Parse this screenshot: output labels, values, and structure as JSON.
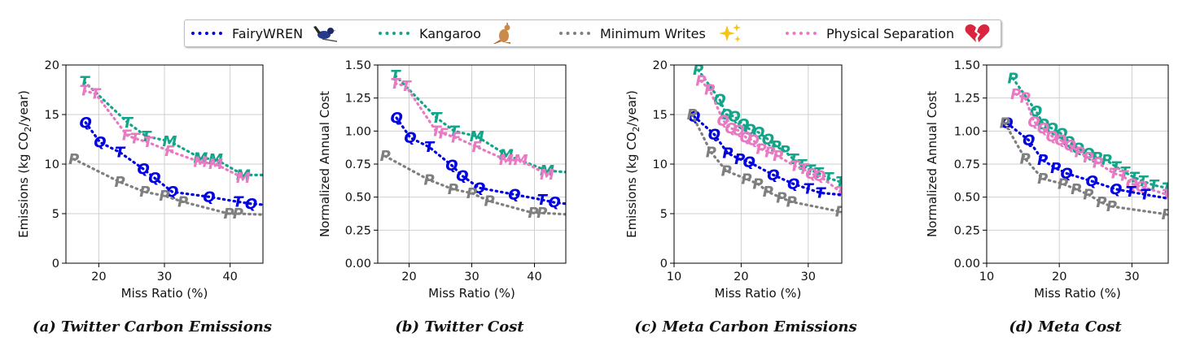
{
  "legend": {
    "items": [
      {
        "label": "FairyWREN",
        "color": "#0000e0",
        "icon": "wren-bird-icon"
      },
      {
        "label": "Kangaroo",
        "color": "#12a58a",
        "icon": "kangaroo-icon"
      },
      {
        "label": "Minimum Writes",
        "color": "#7f7f7f",
        "icon": "sparkles-icon"
      },
      {
        "label": "Physical Separation",
        "color": "#e77ac3",
        "icon": "broken-heart-icon"
      }
    ]
  },
  "chart_data": [
    {
      "type": "line",
      "caption": "(a) Twitter Carbon Emissions",
      "xlabel": "Miss Ratio (%)",
      "ylabel": "Emissions (kg CO2/year)",
      "xlim": [
        15,
        45
      ],
      "ylim": [
        0,
        20
      ],
      "xticks": [
        "20",
        "30",
        "40"
      ],
      "xtick_values": [
        20,
        30,
        40
      ],
      "yticks": [
        "0",
        "5",
        "10",
        "15",
        "20"
      ],
      "ytick_values": [
        0,
        5,
        10,
        15,
        20
      ],
      "grid": true,
      "series": [
        {
          "name": "Kangaroo",
          "color": "#12a58a",
          "points": [
            [
              17.8,
              18.3,
              "T"
            ],
            [
              24.4,
              14.2,
              "T"
            ],
            [
              27.2,
              12.8,
              "T"
            ],
            [
              30.8,
              12.3,
              "M"
            ],
            [
              35.5,
              10.6,
              "M"
            ],
            [
              37.8,
              10.5,
              "M"
            ],
            [
              42.0,
              8.9,
              "M"
            ],
            [
              45,
              8.9,
              ""
            ]
          ]
        },
        {
          "name": "Physical Separation",
          "color": "#e77ac3",
          "points": [
            [
              17.8,
              17.4,
              "T"
            ],
            [
              19.5,
              17.1,
              "T"
            ],
            [
              24.3,
              12.9,
              "F"
            ],
            [
              25.5,
              12.6,
              "T"
            ],
            [
              27.5,
              12.2,
              "T"
            ],
            [
              30.8,
              11.3,
              "F"
            ],
            [
              35.5,
              10.2,
              "M"
            ],
            [
              37.8,
              10.0,
              "M"
            ],
            [
              42.0,
              8.6,
              "M"
            ]
          ]
        },
        {
          "name": "FairyWREN",
          "color": "#0000e0",
          "points": [
            [
              18.0,
              14.2,
              "Q"
            ],
            [
              20.2,
              12.2,
              "Q"
            ],
            [
              23.2,
              11.2,
              "T"
            ],
            [
              26.8,
              9.5,
              "Q"
            ],
            [
              28.5,
              8.6,
              "Q"
            ],
            [
              31.2,
              7.2,
              "Q"
            ],
            [
              36.8,
              6.7,
              "Q"
            ],
            [
              41.2,
              6.2,
              "T"
            ],
            [
              43.2,
              6.0,
              "Q"
            ],
            [
              45,
              5.9,
              ""
            ]
          ]
        },
        {
          "name": "Minimum Writes",
          "color": "#7f7f7f",
          "points": [
            [
              16.2,
              10.5,
              "P"
            ],
            [
              23.2,
              8.2,
              "P"
            ],
            [
              27.0,
              7.2,
              "P"
            ],
            [
              30.0,
              6.8,
              "P"
            ],
            [
              32.8,
              6.2,
              "P"
            ],
            [
              39.8,
              5.0,
              "P"
            ],
            [
              41.2,
              5.0,
              "P"
            ],
            [
              45,
              4.9,
              ""
            ]
          ]
        }
      ]
    },
    {
      "type": "line",
      "caption": "(b) Twitter Cost",
      "xlabel": "Miss Ratio (%)",
      "ylabel": "Normalized Annual Cost",
      "xlim": [
        15,
        45
      ],
      "ylim": [
        0,
        1.5
      ],
      "xticks": [
        "20",
        "30",
        "40"
      ],
      "xtick_values": [
        20,
        30,
        40
      ],
      "yticks": [
        "0.00",
        "0.25",
        "0.50",
        "0.75",
        "1.00",
        "1.25",
        "1.50"
      ],
      "ytick_values": [
        0,
        0.25,
        0.5,
        0.75,
        1.0,
        1.25,
        1.5
      ],
      "grid": true,
      "series": [
        {
          "name": "Kangaroo",
          "color": "#12a58a",
          "points": [
            [
              17.8,
              1.42,
              "T"
            ],
            [
              24.4,
              1.1,
              "T"
            ],
            [
              27.2,
              1.0,
              "T"
            ],
            [
              30.8,
              0.96,
              "M"
            ],
            [
              35.5,
              0.82,
              "M"
            ],
            [
              42.0,
              0.7,
              "M"
            ],
            [
              45,
              0.69,
              ""
            ]
          ]
        },
        {
          "name": "Physical Separation",
          "color": "#e77ac3",
          "points": [
            [
              17.8,
              1.36,
              "T"
            ],
            [
              19.5,
              1.34,
              "T"
            ],
            [
              24.3,
              1.0,
              "T"
            ],
            [
              25.5,
              0.98,
              "F"
            ],
            [
              27.5,
              0.95,
              "F"
            ],
            [
              30.8,
              0.88,
              "F"
            ],
            [
              35.5,
              0.78,
              "M"
            ],
            [
              37.8,
              0.78,
              "M"
            ],
            [
              42.0,
              0.67,
              "M"
            ]
          ]
        },
        {
          "name": "FairyWREN",
          "color": "#0000e0",
          "points": [
            [
              18.0,
              1.1,
              "Q"
            ],
            [
              20.2,
              0.95,
              "Q"
            ],
            [
              23.2,
              0.88,
              "T"
            ],
            [
              26.8,
              0.74,
              "Q"
            ],
            [
              28.5,
              0.66,
              "Q"
            ],
            [
              31.2,
              0.57,
              "Q"
            ],
            [
              36.8,
              0.52,
              "Q"
            ],
            [
              41.2,
              0.48,
              "T"
            ],
            [
              43.2,
              0.46,
              "Q"
            ],
            [
              45,
              0.45,
              ""
            ]
          ]
        },
        {
          "name": "Minimum Writes",
          "color": "#7f7f7f",
          "points": [
            [
              16.2,
              0.81,
              "P"
            ],
            [
              23.2,
              0.63,
              "P"
            ],
            [
              27.0,
              0.56,
              "P"
            ],
            [
              30.0,
              0.53,
              "P"
            ],
            [
              32.8,
              0.47,
              "P"
            ],
            [
              39.8,
              0.38,
              "P"
            ],
            [
              41.2,
              0.38,
              "P"
            ],
            [
              45,
              0.37,
              ""
            ]
          ]
        }
      ]
    },
    {
      "type": "line",
      "caption": "(c) Meta Carbon Emissions",
      "xlabel": "Miss Ratio (%)",
      "ylabel": "Emissions (kg CO2/year)",
      "xlim": [
        10,
        35
      ],
      "ylim": [
        0,
        20
      ],
      "xticks": [
        "10",
        "20",
        "30"
      ],
      "xtick_values": [
        10,
        20,
        30
      ],
      "yticks": [
        "0",
        "5",
        "10",
        "15",
        "20"
      ],
      "ytick_values": [
        0,
        5,
        10,
        15,
        20
      ],
      "grid": true,
      "series": [
        {
          "name": "Kangaroo",
          "color": "#12a58a",
          "points": [
            [
              13.6,
              19.5,
              "P"
            ],
            [
              16.8,
              16.5,
              "Q"
            ],
            [
              17.8,
              15.0,
              "Q"
            ],
            [
              19.0,
              14.8,
              "Q"
            ],
            [
              20.3,
              14.0,
              "Q"
            ],
            [
              21.3,
              13.5,
              "Q"
            ],
            [
              22.6,
              13.2,
              "Q"
            ],
            [
              24.0,
              12.5,
              "Q"
            ],
            [
              25.2,
              11.8,
              "P"
            ],
            [
              26.5,
              11.3,
              "P"
            ],
            [
              27.8,
              10.5,
              "T"
            ],
            [
              29.0,
              9.9,
              "T"
            ],
            [
              30.3,
              9.4,
              "T"
            ],
            [
              31.5,
              9.1,
              "T"
            ],
            [
              33.0,
              8.6,
              "T"
            ],
            [
              34.8,
              8.2,
              "T"
            ]
          ]
        },
        {
          "name": "Physical Separation",
          "color": "#e77ac3",
          "points": [
            [
              14.0,
              18.4,
              "P"
            ],
            [
              15.3,
              17.5,
              "P"
            ],
            [
              17.3,
              14.4,
              "Q"
            ],
            [
              18.5,
              13.6,
              "Q"
            ],
            [
              19.6,
              13.4,
              "Q"
            ],
            [
              20.7,
              12.7,
              "Q"
            ],
            [
              21.8,
              12.4,
              "Q"
            ],
            [
              23.0,
              11.5,
              "P"
            ],
            [
              24.3,
              11.2,
              "P"
            ],
            [
              25.5,
              10.8,
              "P"
            ],
            [
              28.0,
              9.8,
              "T"
            ],
            [
              29.3,
              9.5,
              "T"
            ],
            [
              30.5,
              9.0,
              "Q"
            ],
            [
              31.7,
              8.8,
              "Q"
            ],
            [
              34.8,
              7.2,
              "T"
            ]
          ]
        },
        {
          "name": "FairyWREN",
          "color": "#0000e0",
          "points": [
            [
              13.0,
              14.8,
              "Q"
            ],
            [
              16.0,
              13.0,
              "Q"
            ],
            [
              18.0,
              11.1,
              "P"
            ],
            [
              19.8,
              10.5,
              "P"
            ],
            [
              21.2,
              10.2,
              "Q"
            ],
            [
              24.8,
              8.9,
              "Q"
            ],
            [
              27.8,
              8.0,
              "Q"
            ],
            [
              30.0,
              7.5,
              "T"
            ],
            [
              31.8,
              7.1,
              "T"
            ],
            [
              35,
              6.9,
              ""
            ]
          ]
        },
        {
          "name": "Minimum Writes",
          "color": "#7f7f7f",
          "points": [
            [
              12.7,
              15.0,
              "P"
            ],
            [
              15.5,
              11.2,
              "P"
            ],
            [
              17.8,
              9.3,
              "P"
            ],
            [
              20.8,
              8.5,
              "P"
            ],
            [
              22.5,
              8.0,
              "P"
            ],
            [
              24.0,
              7.2,
              "P"
            ],
            [
              26.0,
              6.6,
              "P"
            ],
            [
              27.5,
              6.2,
              "P"
            ],
            [
              34.8,
              5.2,
              "P"
            ]
          ]
        }
      ]
    },
    {
      "type": "line",
      "caption": "(d) Meta Cost",
      "xlabel": "Miss Ratio (%)",
      "ylabel": "Normalized Annual Cost",
      "xlim": [
        10,
        35
      ],
      "ylim": [
        0,
        1.5
      ],
      "xticks": [
        "10",
        "20",
        "30"
      ],
      "xtick_values": [
        10,
        20,
        30
      ],
      "yticks": [
        "0.00",
        "0.25",
        "0.50",
        "0.75",
        "1.00",
        "1.25",
        "1.50"
      ],
      "ytick_values": [
        0,
        0.25,
        0.5,
        0.75,
        1.0,
        1.25,
        1.5
      ],
      "grid": true,
      "series": [
        {
          "name": "Kangaroo",
          "color": "#12a58a",
          "points": [
            [
              13.6,
              1.4,
              "P"
            ],
            [
              16.8,
              1.15,
              "Q"
            ],
            [
              17.8,
              1.05,
              "Q"
            ],
            [
              19.0,
              1.02,
              "Q"
            ],
            [
              20.3,
              0.98,
              "Q"
            ],
            [
              21.3,
              0.92,
              "Q"
            ],
            [
              22.6,
              0.87,
              "Q"
            ],
            [
              24.0,
              0.83,
              "Q"
            ],
            [
              25.2,
              0.8,
              "P"
            ],
            [
              26.5,
              0.78,
              "P"
            ],
            [
              27.8,
              0.73,
              "T"
            ],
            [
              29.0,
              0.69,
              "T"
            ],
            [
              30.3,
              0.65,
              "T"
            ],
            [
              31.5,
              0.62,
              "T"
            ],
            [
              33.0,
              0.59,
              "T"
            ],
            [
              34.8,
              0.57,
              "T"
            ]
          ]
        },
        {
          "name": "Physical Separation",
          "color": "#e77ac3",
          "points": [
            [
              14.0,
              1.28,
              "P"
            ],
            [
              15.3,
              1.25,
              "P"
            ],
            [
              16.5,
              1.07,
              "Q"
            ],
            [
              17.8,
              1.02,
              "Q"
            ],
            [
              19.0,
              0.96,
              "Q"
            ],
            [
              20.2,
              0.93,
              "Q"
            ],
            [
              21.5,
              0.89,
              "Q"
            ],
            [
              22.8,
              0.84,
              "P"
            ],
            [
              24.0,
              0.8,
              "P"
            ],
            [
              25.3,
              0.76,
              "P"
            ],
            [
              27.5,
              0.68,
              "T"
            ],
            [
              28.8,
              0.66,
              "T"
            ],
            [
              30.0,
              0.6,
              "Q"
            ],
            [
              31.3,
              0.58,
              "Q"
            ],
            [
              34.8,
              0.52,
              "T"
            ]
          ]
        },
        {
          "name": "FairyWREN",
          "color": "#0000e0",
          "points": [
            [
              12.8,
              1.06,
              "Q"
            ],
            [
              15.8,
              0.93,
              "Q"
            ],
            [
              17.7,
              0.78,
              "P"
            ],
            [
              19.5,
              0.72,
              "P"
            ],
            [
              21.0,
              0.68,
              "Q"
            ],
            [
              24.5,
              0.62,
              "Q"
            ],
            [
              27.8,
              0.56,
              "Q"
            ],
            [
              29.8,
              0.54,
              "T"
            ],
            [
              31.8,
              0.52,
              "T"
            ],
            [
              35,
              0.49,
              ""
            ]
          ]
        },
        {
          "name": "Minimum Writes",
          "color": "#7f7f7f",
          "points": [
            [
              12.5,
              1.06,
              "P"
            ],
            [
              15.3,
              0.79,
              "P"
            ],
            [
              17.7,
              0.64,
              "P"
            ],
            [
              20.5,
              0.6,
              "P"
            ],
            [
              22.3,
              0.56,
              "P"
            ],
            [
              24.0,
              0.52,
              "P"
            ],
            [
              25.8,
              0.46,
              "P"
            ],
            [
              27.2,
              0.43,
              "P"
            ],
            [
              34.8,
              0.37,
              "P"
            ]
          ]
        }
      ]
    }
  ]
}
